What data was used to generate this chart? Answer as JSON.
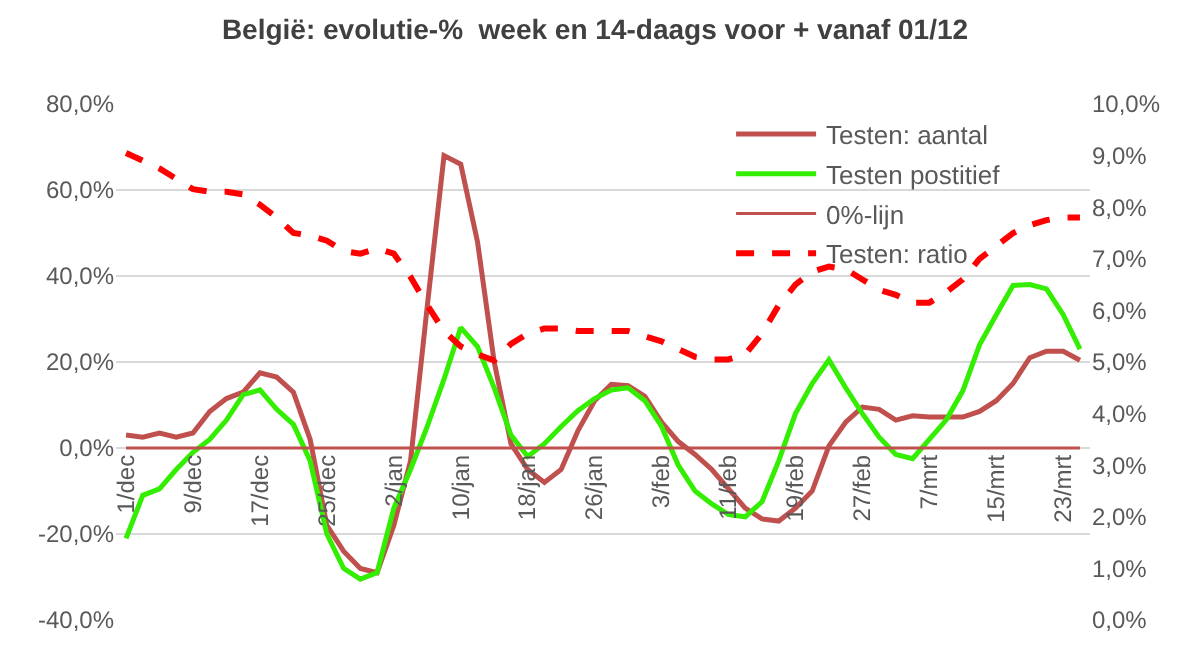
{
  "chart_data": {
    "type": "line",
    "title": "België: evolutie-%  week en 14-daags voor + vanaf 01/12",
    "categories": [
      "1/dec",
      null,
      null,
      null,
      "9/dec",
      null,
      null,
      null,
      "17/dec",
      null,
      null,
      null,
      "25/dec",
      null,
      null,
      null,
      "2/jan",
      null,
      null,
      null,
      "10/jan",
      null,
      null,
      null,
      "18/jan",
      null,
      null,
      null,
      "26/jan",
      null,
      null,
      null,
      "3/feb",
      null,
      null,
      null,
      "11/feb",
      null,
      null,
      null,
      "19/feb",
      null,
      null,
      null,
      "27/feb",
      null,
      null,
      null,
      "7/mrt",
      null,
      null,
      null,
      "15/mrt",
      null,
      null,
      null,
      "23/mrt",
      null
    ],
    "series": [
      {
        "name": "Testen: aantal",
        "color": "#c0504d",
        "values": [
          3.0,
          2.5,
          3.5,
          2.5,
          3.5,
          8.5,
          11.5,
          13,
          17.5,
          16.5,
          13,
          2,
          -18,
          -24,
          -28,
          -29,
          -18,
          -3,
          33,
          68,
          66,
          48,
          20,
          1,
          -5,
          -8,
          -5,
          4,
          11,
          14.8,
          14.5,
          12,
          6,
          1.5,
          -1.5,
          -5,
          -9.5,
          -14,
          -16.5,
          -17,
          -14,
          -10,
          0.5,
          6,
          9.5,
          9,
          6.5,
          7.5,
          7.2,
          7.2,
          7.2,
          8.5,
          11,
          15,
          21,
          22.5,
          22.5,
          20.4
        ]
      },
      {
        "name": "Testen postitief",
        "color": "#33ee00",
        "values": [
          -21,
          -11,
          -9.5,
          -5,
          -1,
          2,
          6.5,
          12.4,
          13.5,
          9,
          5.5,
          -3,
          -20,
          -28,
          -30.5,
          -29,
          -14,
          -5,
          5,
          16,
          28,
          23.6,
          14,
          3,
          -2,
          1,
          5,
          8.7,
          11.5,
          13.5,
          14,
          11,
          5,
          -4,
          -10,
          -13,
          -15.5,
          -16,
          -12.5,
          -3,
          8,
          15,
          20.5,
          14,
          8,
          2.5,
          -1.5,
          -2.5,
          2,
          6.5,
          13.3,
          24,
          31,
          37.8,
          38,
          37,
          31,
          23
        ]
      },
      {
        "name": "0%-lijn",
        "color": "#c0504d",
        "values": [
          0,
          0,
          0,
          0,
          0,
          0,
          0,
          0,
          0,
          0,
          0,
          0,
          0,
          0,
          0,
          0,
          0,
          0,
          0,
          0,
          0,
          0,
          0,
          0,
          0,
          0,
          0,
          0,
          0,
          0,
          0,
          0,
          0,
          0,
          0,
          0,
          0,
          0,
          0,
          0,
          0,
          0,
          0,
          0,
          0,
          0,
          0,
          0,
          0,
          0,
          0,
          0,
          0,
          0,
          0,
          0,
          0,
          0
        ]
      },
      {
        "name": "Testen: ratio",
        "color": "#ff0000",
        "axis": "y2",
        "line_style": "dashed",
        "values": [
          9.05,
          8.9,
          8.75,
          8.55,
          8.35,
          8.3,
          8.3,
          8.25,
          8.05,
          7.8,
          7.5,
          7.45,
          7.35,
          7.15,
          7.1,
          7.2,
          7.1,
          6.65,
          6.1,
          5.6,
          5.3,
          5.15,
          5.03,
          5.35,
          5.55,
          5.65,
          5.65,
          5.6,
          5.6,
          5.6,
          5.6,
          5.5,
          5.4,
          5.25,
          5.1,
          5.05,
          5.05,
          5.15,
          5.55,
          6.1,
          6.5,
          6.75,
          6.85,
          6.8,
          6.6,
          6.4,
          6.3,
          6.15,
          6.15,
          6.35,
          6.6,
          7.0,
          7.25,
          7.5,
          7.65,
          7.75,
          7.8,
          7.8
        ]
      }
    ],
    "ylim": [
      -40,
      80
    ],
    "yticks": [
      {
        "value": -40,
        "label": "-40,0%"
      },
      {
        "value": -20,
        "label": "-20,0%"
      },
      {
        "value": 0,
        "label": "0,0%"
      },
      {
        "value": 20,
        "label": "20,0%"
      },
      {
        "value": 40,
        "label": "40,0%"
      },
      {
        "value": 60,
        "label": "60,0%"
      },
      {
        "value": 80,
        "label": "80,0%"
      }
    ],
    "y2lim": [
      0,
      10
    ],
    "y2ticks": [
      {
        "value": 0,
        "label": "0,0%"
      },
      {
        "value": 1,
        "label": "1,0%"
      },
      {
        "value": 2,
        "label": "2,0%"
      },
      {
        "value": 3,
        "label": "3,0%"
      },
      {
        "value": 4,
        "label": "4,0%"
      },
      {
        "value": 5,
        "label": "5,0%"
      },
      {
        "value": 6,
        "label": "6,0%"
      },
      {
        "value": 7,
        "label": "7,0%"
      },
      {
        "value": 8,
        "label": "8,0%"
      },
      {
        "value": 9,
        "label": "9,0%"
      },
      {
        "value": 10,
        "label": "10,0%"
      }
    ],
    "grid": "y",
    "legend": "top right",
    "marker": "none",
    "line_style": "solid"
  }
}
